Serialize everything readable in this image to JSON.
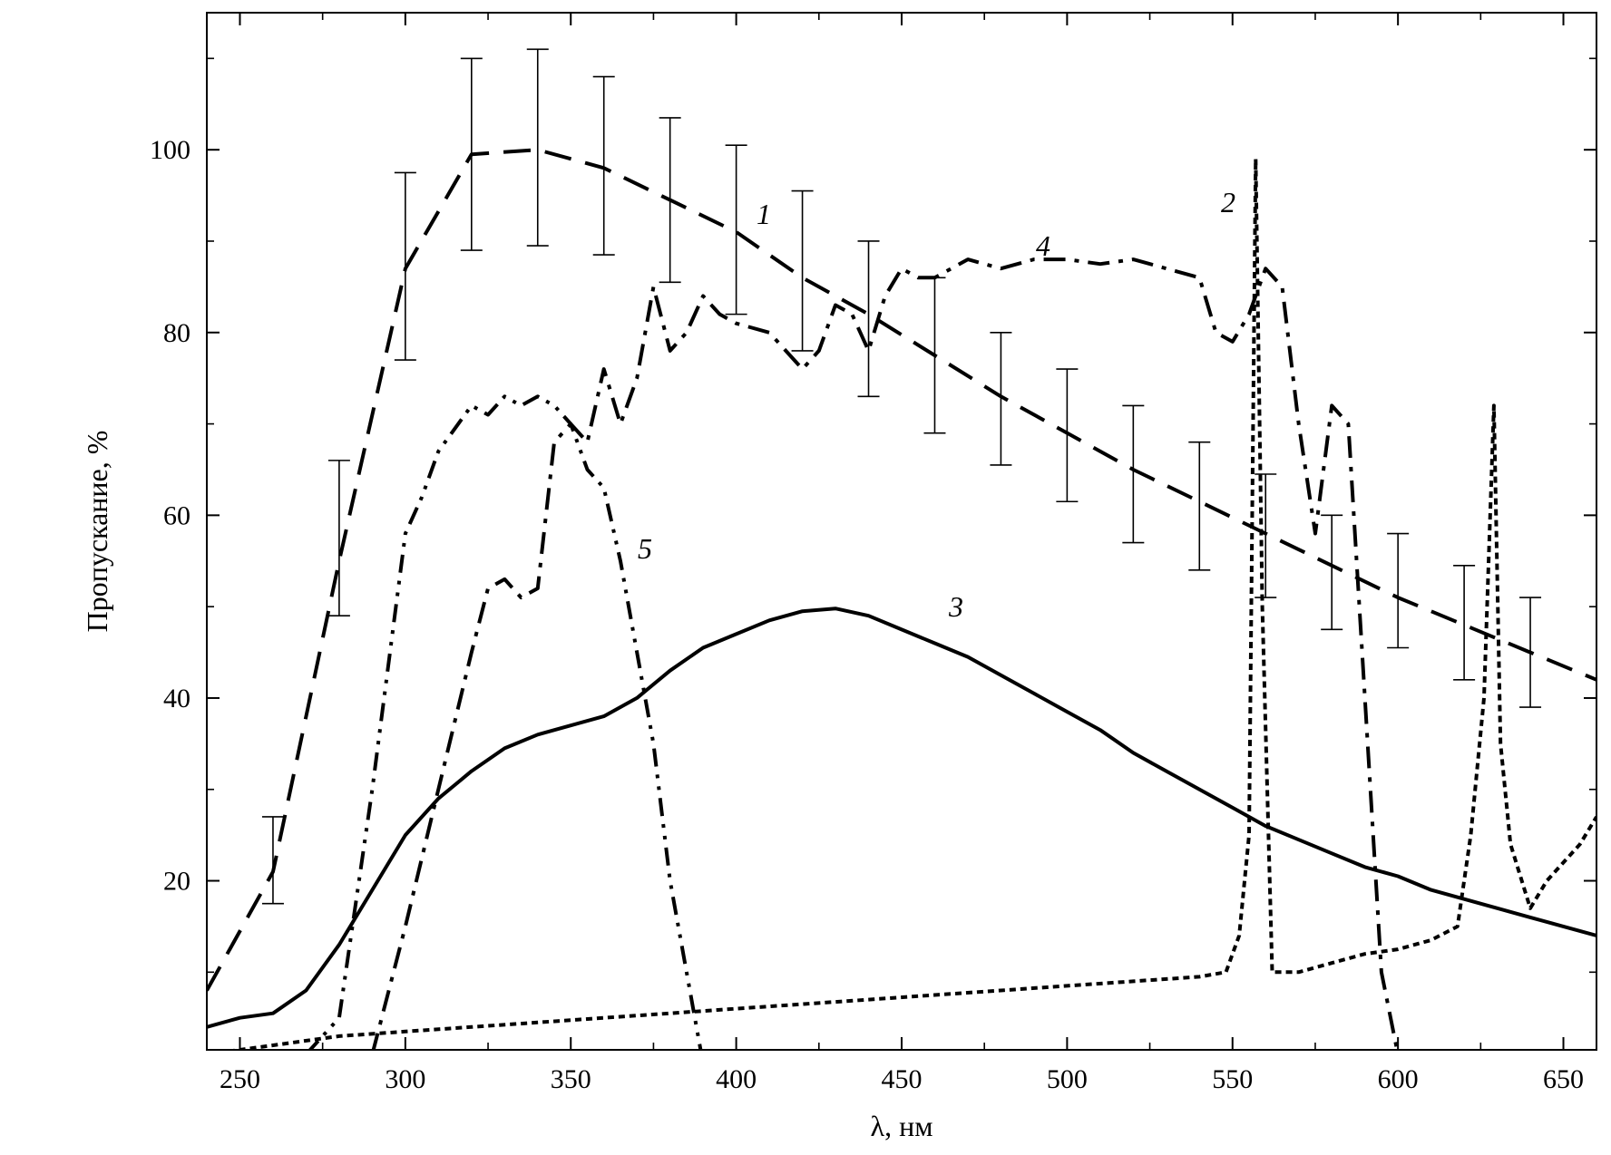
{
  "chart_data": {
    "type": "line",
    "title": "",
    "xlabel": "λ, нм",
    "ylabel": "Пропускание, %",
    "xlim": [
      240,
      660
    ],
    "ylim": [
      1.5,
      115
    ],
    "x_ticks": [
      250,
      300,
      350,
      400,
      450,
      500,
      550,
      600,
      650
    ],
    "y_ticks": [
      20,
      40,
      60,
      80,
      100
    ],
    "x_tick_labels": [
      "250",
      "300",
      "350",
      "400",
      "450",
      "500",
      "550",
      "600",
      "650"
    ],
    "y_tick_labels": [
      "20",
      "40",
      "60",
      "80",
      "100"
    ],
    "grid": false,
    "legend": "none",
    "series": [
      {
        "name": "1",
        "style": "dashed",
        "x": [
          240,
          260,
          280,
          300,
          320,
          340,
          360,
          380,
          400,
          420,
          440,
          460,
          480,
          500,
          520,
          540,
          560,
          580,
          600,
          620,
          640,
          660
        ],
        "y": [
          8,
          21,
          55,
          87,
          99.5,
          100,
          98,
          94.5,
          91,
          86,
          82,
          77.5,
          73,
          69,
          65,
          61.5,
          58,
          54.5,
          51,
          48,
          45,
          42
        ],
        "error_bars": {
          "x": [
            260,
            280,
            300,
            320,
            340,
            360,
            380,
            400,
            420,
            440,
            460,
            480,
            500,
            520,
            540,
            560,
            580,
            600,
            620,
            640
          ],
          "low": [
            17.5,
            49,
            77,
            89,
            89.5,
            88.5,
            85.5,
            82,
            78,
            73,
            69,
            65.5,
            61.5,
            57,
            54,
            51,
            47.5,
            45.5,
            42,
            39
          ],
          "high": [
            27,
            66,
            97.5,
            110,
            111,
            108,
            103.5,
            100.5,
            95.5,
            90,
            86,
            80,
            76,
            72,
            68,
            64.5,
            60,
            58,
            54.5,
            51
          ]
        }
      },
      {
        "name": "2",
        "style": "dotted",
        "x": [
          240,
          260,
          280,
          300,
          320,
          340,
          360,
          380,
          400,
          420,
          440,
          460,
          480,
          500,
          520,
          540,
          548,
          552,
          555,
          557,
          559,
          562,
          570,
          580,
          590,
          600,
          610,
          618,
          622,
          626,
          629,
          631,
          634,
          640,
          645,
          650,
          655,
          660
        ],
        "y": [
          1,
          2,
          3,
          3.5,
          4,
          4.5,
          5,
          5.5,
          6,
          6.5,
          7,
          7.5,
          8,
          8.5,
          9,
          9.5,
          10,
          14,
          25,
          99,
          50,
          10,
          10,
          11,
          12,
          12.5,
          13.5,
          15,
          25,
          40,
          72,
          35,
          24,
          17,
          20,
          22,
          24,
          27
        ]
      },
      {
        "name": "3",
        "style": "solid",
        "x": [
          240,
          250,
          260,
          270,
          280,
          290,
          300,
          310,
          320,
          330,
          340,
          350,
          360,
          370,
          380,
          390,
          400,
          410,
          420,
          430,
          440,
          450,
          460,
          470,
          480,
          490,
          500,
          510,
          520,
          530,
          540,
          550,
          560,
          570,
          580,
          590,
          600,
          610,
          620,
          630,
          640,
          650,
          660
        ],
        "y": [
          4,
          5,
          5.5,
          8,
          13,
          19,
          25,
          29,
          32,
          34.5,
          36,
          37,
          38,
          40,
          43,
          45.5,
          47,
          48.5,
          49.5,
          49.8,
          49,
          47.5,
          46,
          44.5,
          42.5,
          40.5,
          38.5,
          36.5,
          34,
          32,
          30,
          28,
          26,
          24.5,
          23,
          21.5,
          20.5,
          19,
          18,
          17,
          16,
          15,
          14
        ]
      },
      {
        "name": "4",
        "style": "dash-dot",
        "x": [
          290,
          300,
          310,
          320,
          325,
          330,
          335,
          340,
          345,
          350,
          355,
          360,
          365,
          370,
          375,
          380,
          385,
          390,
          395,
          400,
          410,
          420,
          425,
          430,
          435,
          440,
          445,
          450,
          455,
          460,
          470,
          480,
          490,
          500,
          510,
          520,
          530,
          540,
          545,
          550,
          555,
          560,
          565,
          570,
          575,
          580,
          585,
          590,
          595,
          600,
          605
        ],
        "y": [
          1,
          15,
          30,
          45,
          52,
          53,
          51,
          52,
          68,
          70,
          68,
          76,
          70,
          75,
          85,
          78,
          80,
          84,
          82,
          81,
          80,
          76,
          78,
          83,
          82,
          78,
          84,
          87,
          86,
          86,
          88,
          87,
          88,
          88,
          87.5,
          88,
          87,
          86,
          80,
          79,
          82,
          87,
          85,
          70,
          58,
          72,
          70,
          40,
          10,
          1,
          0
        ]
      },
      {
        "name": "5",
        "style": "dash-dot-dot",
        "x": [
          270,
          280,
          290,
          300,
          305,
          310,
          320,
          325,
          330,
          335,
          340,
          345,
          350,
          355,
          360,
          365,
          370,
          375,
          380,
          385,
          390
        ],
        "y": [
          1,
          5,
          30,
          58,
          62,
          67,
          72,
          71,
          73,
          72,
          73,
          72,
          70,
          65,
          63,
          55,
          45,
          35,
          20,
          10,
          0
        ]
      }
    ],
    "curve_labels": [
      "1",
      "2",
      "3",
      "4",
      "5"
    ]
  }
}
